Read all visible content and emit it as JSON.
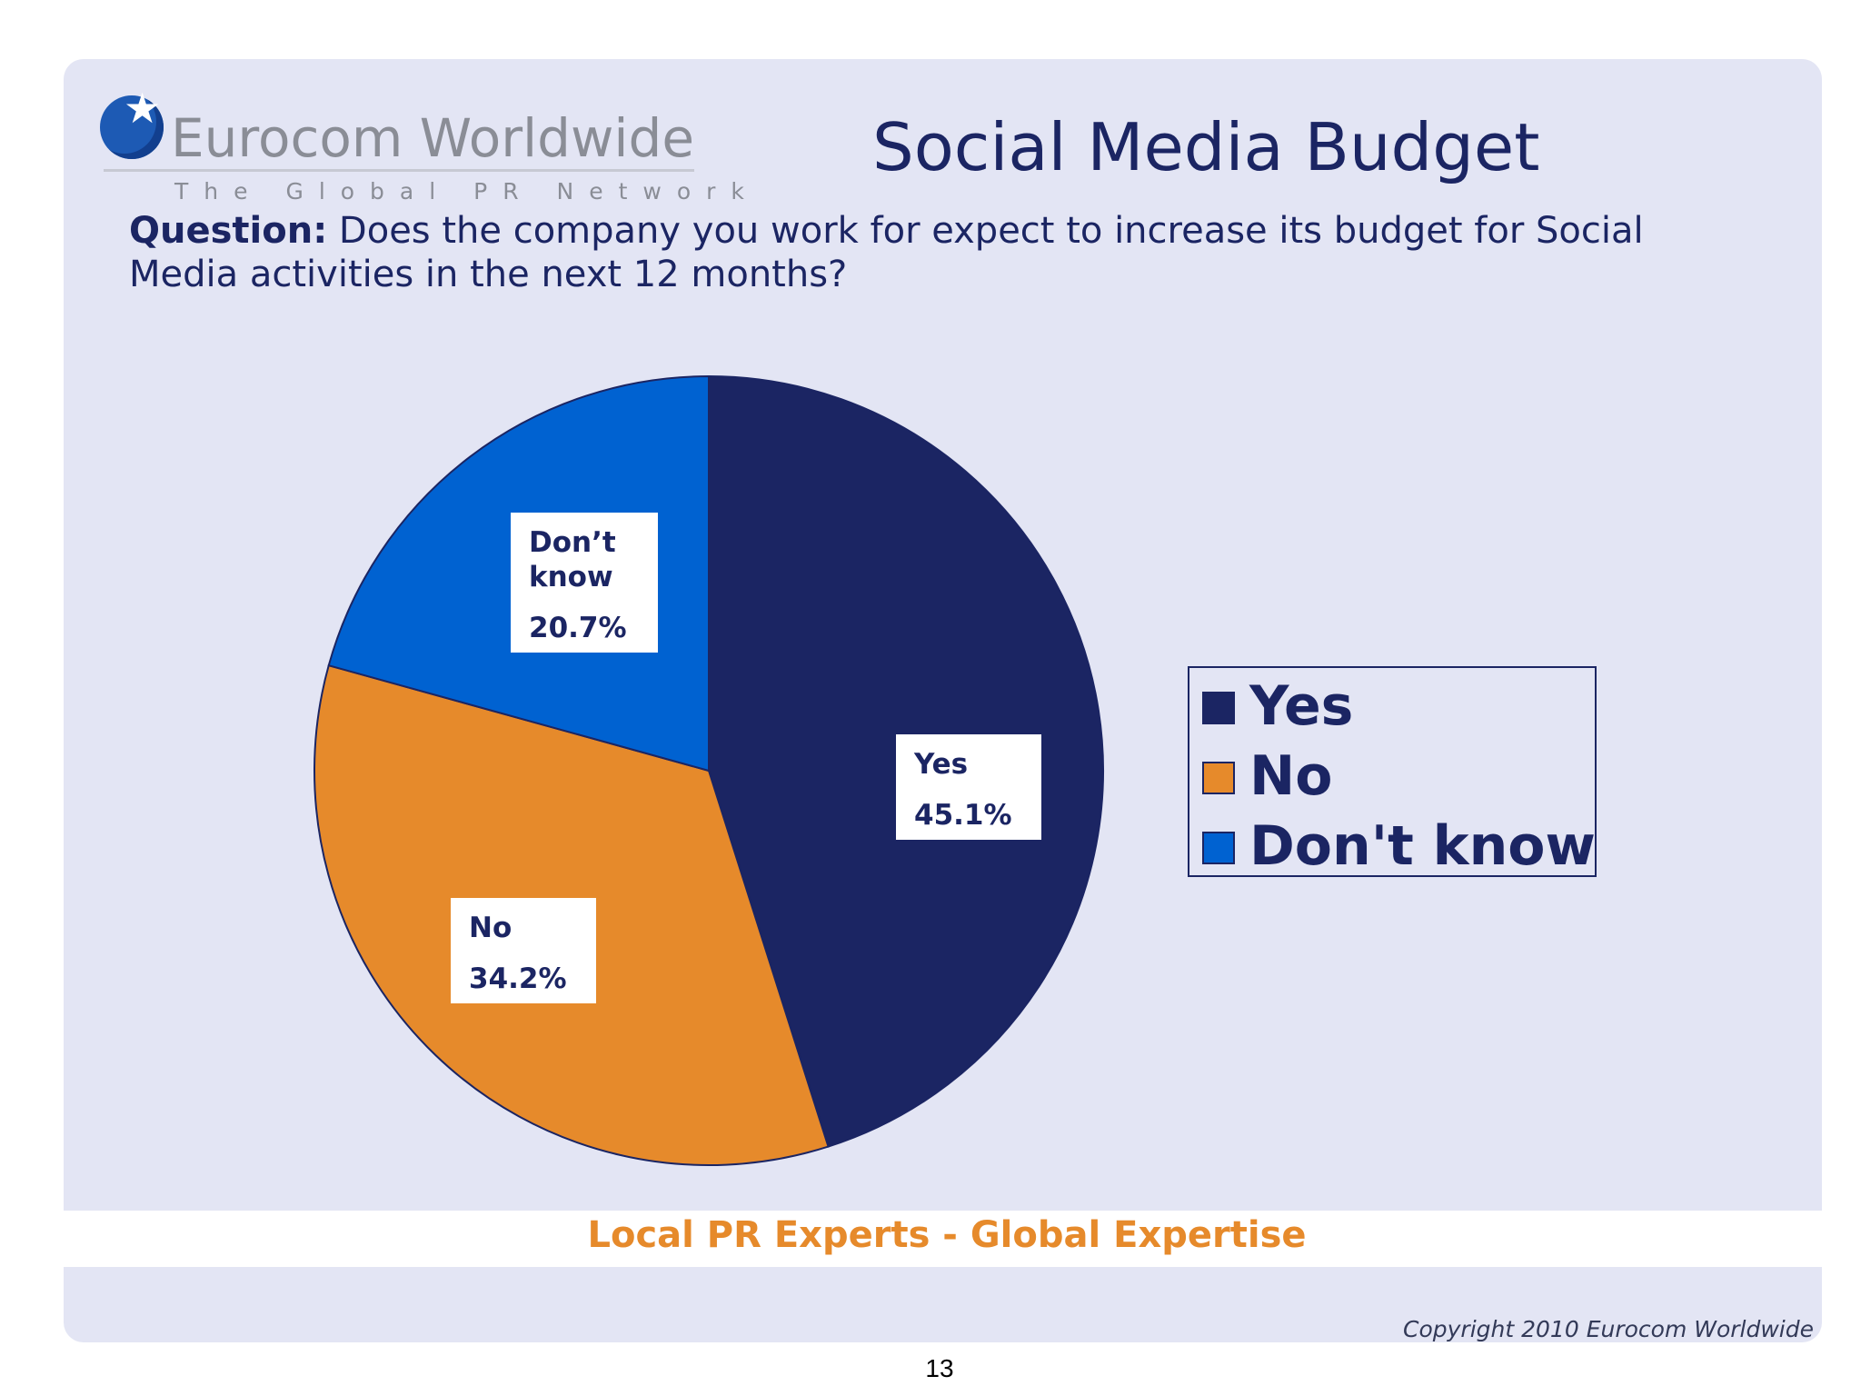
{
  "logo": {
    "name": "Eurocom Worldwide",
    "tagline": "The Global PR Network"
  },
  "title": "Social Media Budget",
  "question": {
    "label": "Question:",
    "text": "Does the company you work for expect to increase its budget for Social Media activities in the next 12 months?"
  },
  "colors": {
    "yes": "#1b2563",
    "no": "#e68a2b",
    "dont_know": "#0062d1",
    "background": "#e3e5f4"
  },
  "chart_data": {
    "type": "pie",
    "start_angle_deg": 0,
    "direction": "clockwise",
    "slices": [
      {
        "name": "Yes",
        "label": "Yes",
        "value": 45.1,
        "value_text": "45.1%",
        "color": "#1b2563"
      },
      {
        "name": "No",
        "label": "No",
        "value": 34.2,
        "value_text": "34.2%",
        "color": "#e68a2b"
      },
      {
        "name": "Don't know",
        "label": "Don’t know",
        "value": 20.7,
        "value_text": "20.7%",
        "color": "#0062d1"
      }
    ],
    "legend": {
      "placement": "right",
      "entries": [
        "Yes",
        "No",
        "Don't know"
      ]
    }
  },
  "footer": {
    "slogan": "Local PR Experts - Global Expertise",
    "copyright": "Copyright 2010 Eurocom Worldwide",
    "page_number": "13"
  }
}
